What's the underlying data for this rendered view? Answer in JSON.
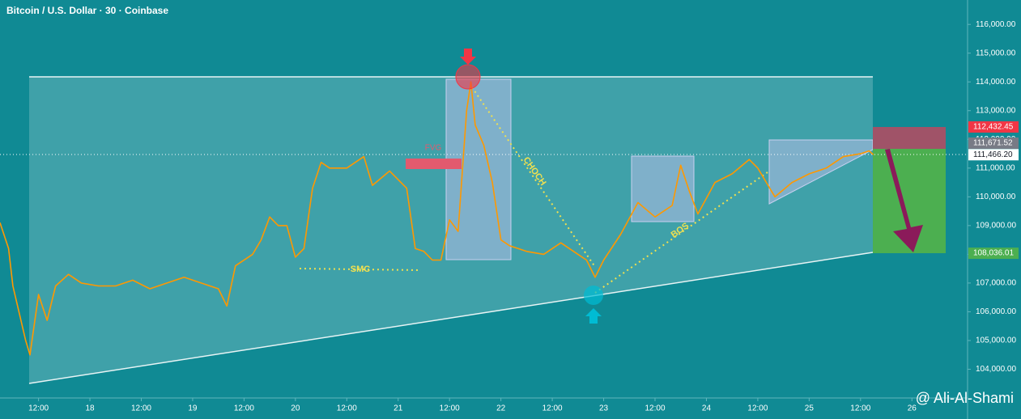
{
  "chart_data": {
    "type": "line",
    "title": "Bitcoin / U.S. Dollar · 30 · Coinbase",
    "x": [
      3,
      5,
      6,
      9,
      10,
      12,
      14,
      16,
      19,
      22,
      26,
      30,
      34,
      38,
      42,
      46,
      50,
      54,
      56,
      58,
      62,
      64,
      66,
      68,
      70,
      72,
      74,
      76,
      78,
      80,
      84,
      88,
      90,
      94,
      98,
      100,
      102,
      104,
      106,
      108,
      110,
      112,
      113,
      114,
      116,
      118,
      120,
      122,
      126,
      130,
      134,
      138,
      140,
      142,
      144,
      148,
      152,
      156,
      160,
      162,
      164,
      166,
      170,
      174,
      178,
      180,
      182,
      184,
      188,
      192,
      196,
      200,
      204,
      206,
      207
    ],
    "values": [
      109100,
      108200,
      106900,
      105000,
      104500,
      106600,
      105700,
      106900,
      107300,
      107000,
      106900,
      106900,
      107100,
      106800,
      107000,
      107200,
      107000,
      106800,
      106200,
      107600,
      108000,
      108500,
      109300,
      109000,
      109000,
      107900,
      108200,
      110300,
      111200,
      111000,
      111000,
      111400,
      110400,
      110900,
      110300,
      108200,
      108100,
      107800,
      107800,
      109200,
      108800,
      113000,
      114000,
      112500,
      111800,
      110500,
      108500,
      108300,
      108100,
      108000,
      108400,
      108000,
      107800,
      107200,
      107800,
      108700,
      109800,
      109300,
      109700,
      111100,
      110200,
      109400,
      110500,
      110800,
      111300,
      111000,
      110500,
      110000,
      110500,
      110800,
      111000,
      111400,
      111500,
      111600,
      111466.2
    ],
    "color": "#ff9800",
    "xlim": [
      3,
      229
    ],
    "ylim": [
      103000,
      116850
    ],
    "xticks": [
      {
        "value": 12,
        "label": "12:00"
      },
      {
        "value": 24,
        "label": "18"
      },
      {
        "value": 36,
        "label": "12:00"
      },
      {
        "value": 48,
        "label": "19"
      },
      {
        "value": 60,
        "label": "12:00"
      },
      {
        "value": 72,
        "label": "20"
      },
      {
        "value": 84,
        "label": "12:00"
      },
      {
        "value": 96,
        "label": "21"
      },
      {
        "value": 108,
        "label": "12:00"
      },
      {
        "value": 120,
        "label": "22"
      },
      {
        "value": 132,
        "label": "12:00"
      },
      {
        "value": 144,
        "label": "23"
      },
      {
        "value": 156,
        "label": "12:00"
      },
      {
        "value": 168,
        "label": "24"
      },
      {
        "value": 180,
        "label": "12:00"
      },
      {
        "value": 192,
        "label": "25"
      },
      {
        "value": 204,
        "label": "12:00"
      },
      {
        "value": 216,
        "label": "26"
      }
    ],
    "yticks": [
      {
        "value": 104000,
        "label": "104,000.00"
      },
      {
        "value": 105000,
        "label": "105,000.00"
      },
      {
        "value": 106000,
        "label": "106,000.00"
      },
      {
        "value": 107000,
        "label": "107,000.00"
      },
      {
        "value": 108000,
        "label": "108,000.00"
      },
      {
        "value": 109000,
        "label": "109,000.00"
      },
      {
        "value": 110000,
        "label": "110,000.00"
      },
      {
        "value": 111000,
        "label": "111,000.00"
      },
      {
        "value": 112000,
        "label": "112,000.00"
      },
      {
        "value": 113000,
        "label": "113,000.00"
      },
      {
        "value": 114000,
        "label": "114,000.00"
      },
      {
        "value": 115000,
        "label": "115,000.00"
      },
      {
        "value": 116000,
        "label": "116,000.00"
      }
    ],
    "price_tags": [
      {
        "value": 112432.45,
        "label": "112,432.45",
        "color": "#f23645"
      },
      {
        "value": 111671.52,
        "label": "111,671.52",
        "color": "#787b86"
      },
      {
        "value": 111466.2,
        "label": "111,466.20",
        "color": "#ffffff"
      },
      {
        "value": 108036.01,
        "label": "108,036.01",
        "color": "#4caf50"
      }
    ],
    "annotations": [
      "FVG",
      "SMC",
      "CHOCH",
      "BOS"
    ],
    "watermark": "@ Ali-Al-Shami"
  }
}
